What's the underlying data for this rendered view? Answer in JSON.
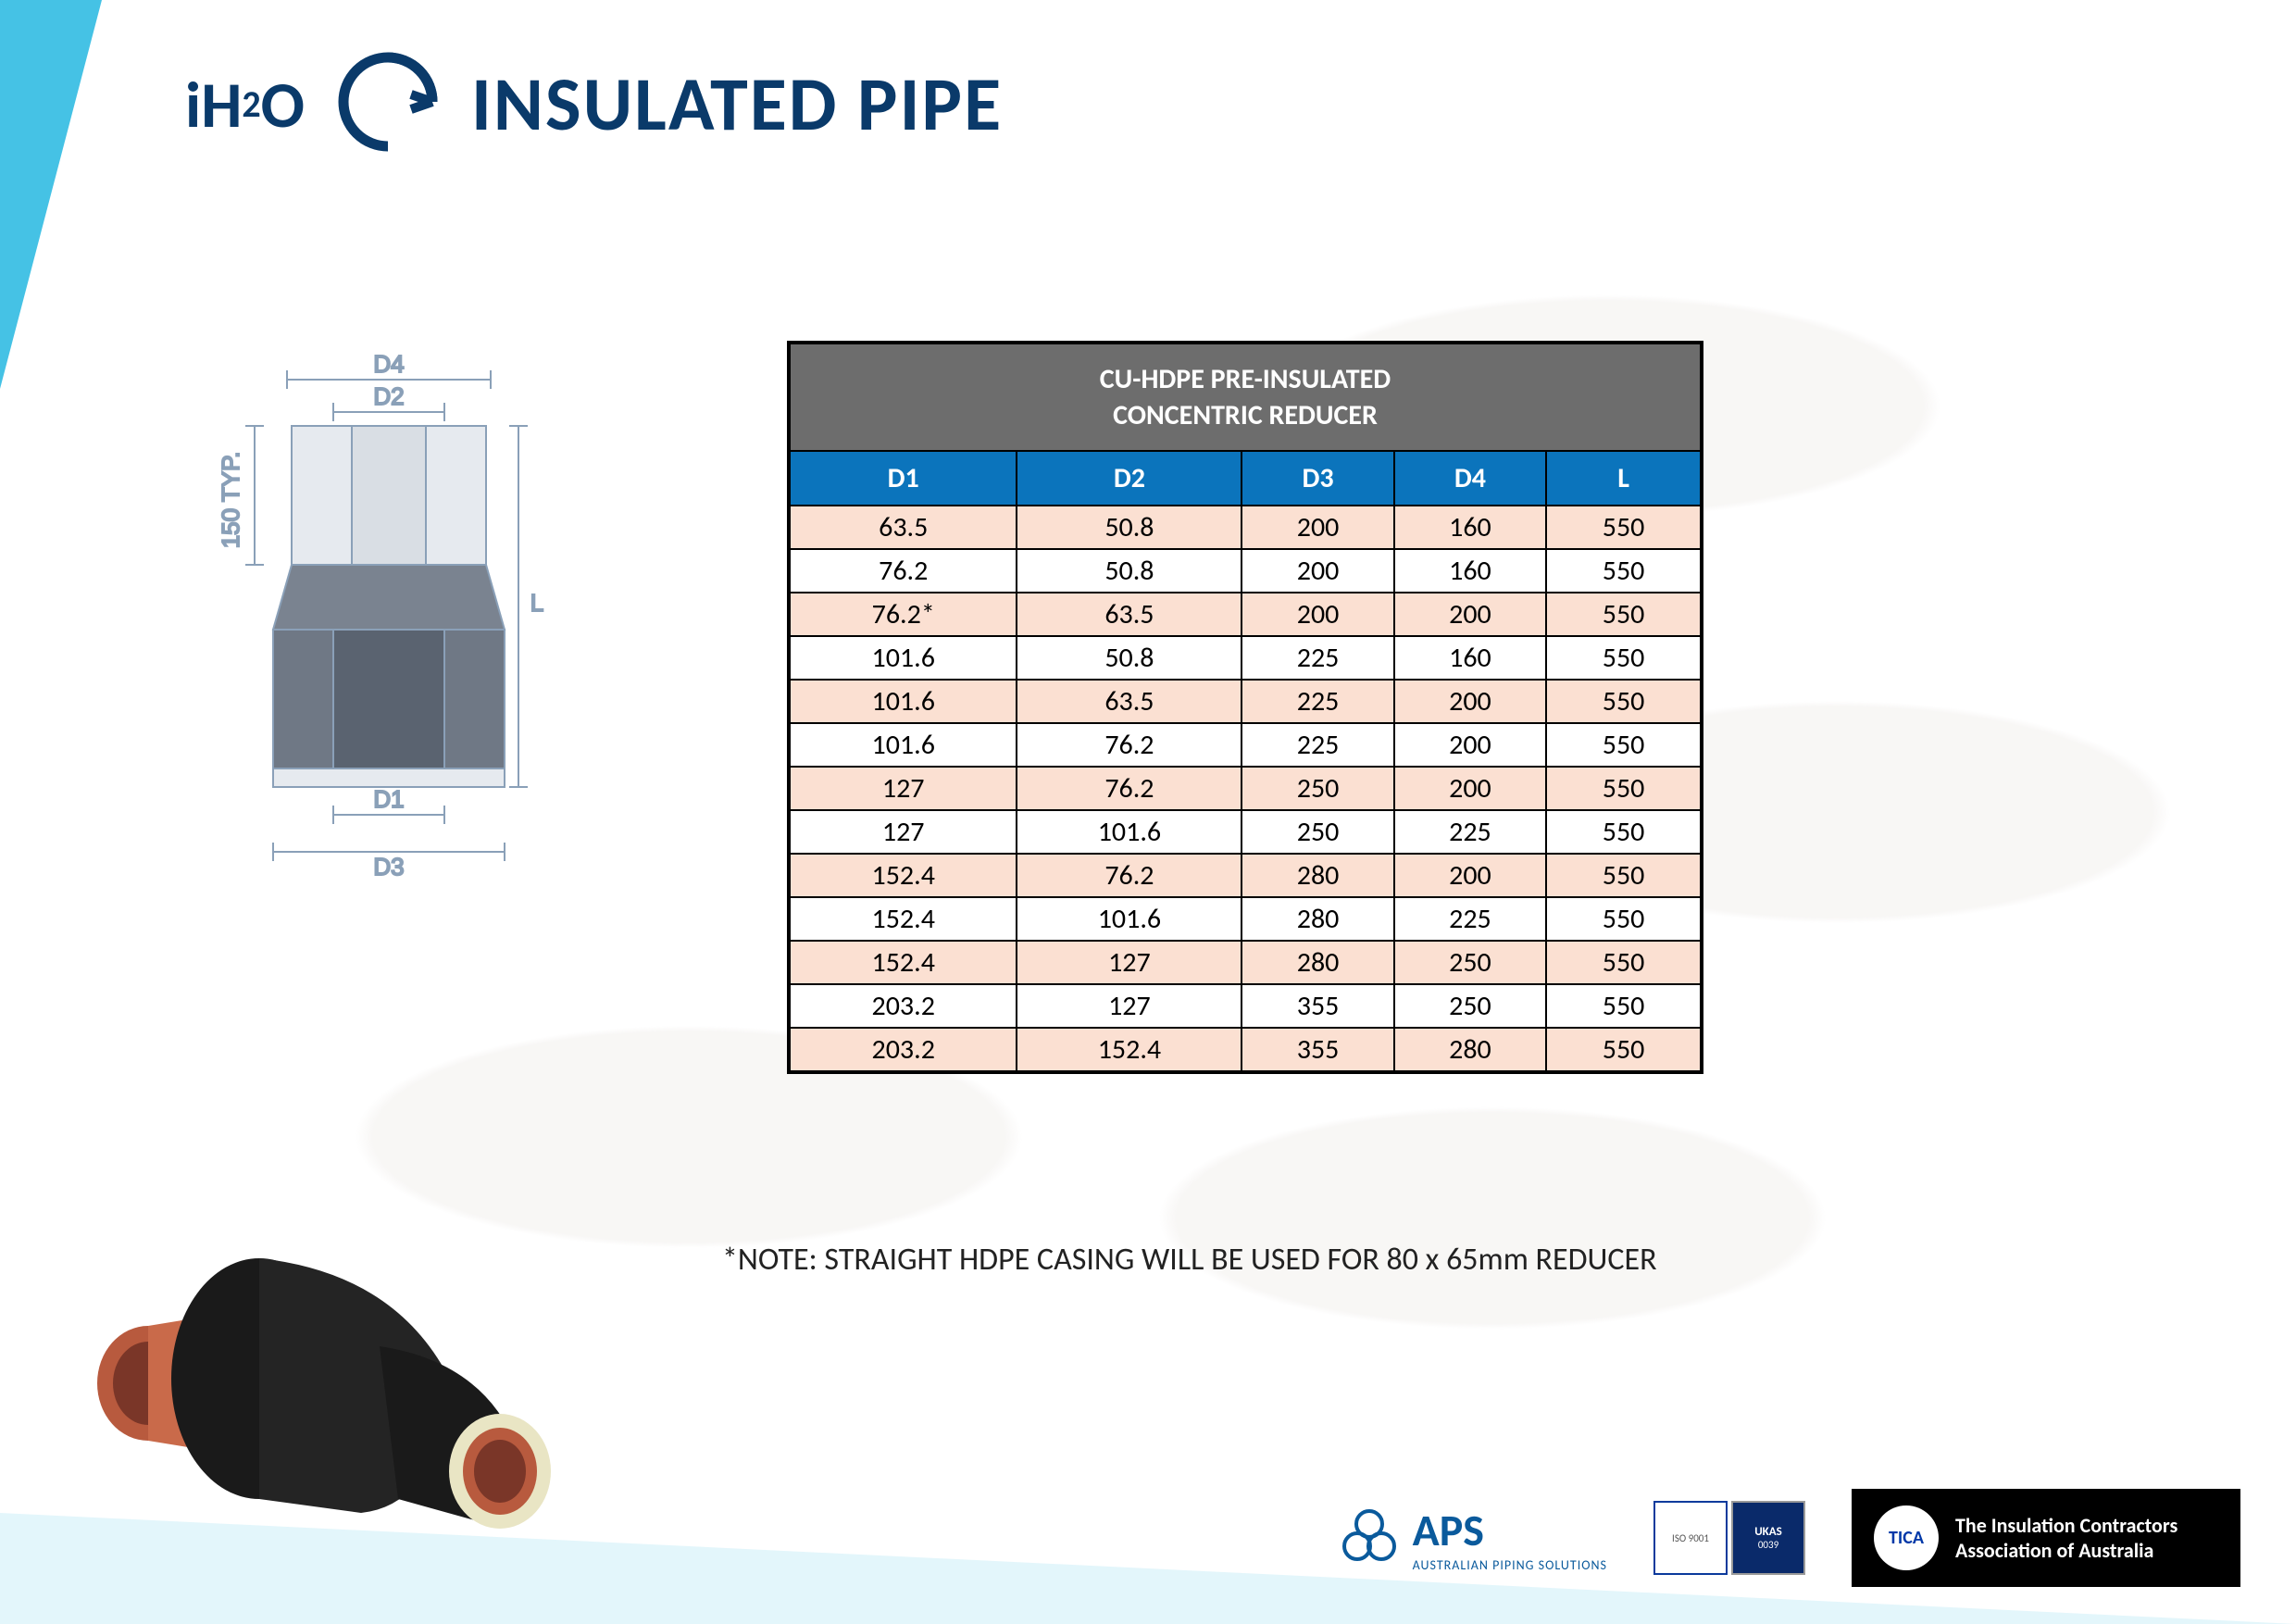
{
  "header": {
    "logo_prefix": "iH",
    "logo_super": "2",
    "logo_suffix": "O",
    "title": "INSULATED PIPE"
  },
  "diagram": {
    "labels": {
      "d1": "D1",
      "d2": "D2",
      "d3": "D3",
      "d4": "D4",
      "l": "L",
      "typ": "150 TYP."
    },
    "stroke": "#8aa0b8",
    "fill_top": "#d9dee4",
    "fill_body": "#6f7885"
  },
  "table": {
    "title_line1": "CU-HDPE PRE-INSULATED",
    "title_line2": "CONCENTRIC REDUCER",
    "title_bg": "#6d6d6d",
    "header_bg": "#0b74bc",
    "row_odd_bg": "#fbe0d2",
    "row_even_bg": "#ffffff",
    "border_color": "#000000",
    "columns": [
      "D1",
      "D2",
      "D3",
      "D4",
      "L"
    ],
    "rows": [
      [
        "63.5",
        "50.8",
        "200",
        "160",
        "550"
      ],
      [
        "76.2",
        "50.8",
        "200",
        "160",
        "550"
      ],
      [
        "76.2*",
        "63.5",
        "200",
        "200",
        "550"
      ],
      [
        "101.6",
        "50.8",
        "225",
        "160",
        "550"
      ],
      [
        "101.6",
        "63.5",
        "225",
        "200",
        "550"
      ],
      [
        "101.6",
        "76.2",
        "225",
        "200",
        "550"
      ],
      [
        "127",
        "76.2",
        "250",
        "200",
        "550"
      ],
      [
        "127",
        "101.6",
        "250",
        "225",
        "550"
      ],
      [
        "152.4",
        "76.2",
        "280",
        "200",
        "550"
      ],
      [
        "152.4",
        "101.6",
        "280",
        "225",
        "550"
      ],
      [
        "152.4",
        "127",
        "280",
        "250",
        "550"
      ],
      [
        "203.2",
        "127",
        "355",
        "250",
        "550"
      ],
      [
        "203.2",
        "152.4",
        "355",
        "280",
        "550"
      ]
    ]
  },
  "note": "*NOTE: STRAIGHT HDPE CASING WILL BE USED FOR 80 x 65mm REDUCER",
  "footer": {
    "aps": {
      "name": "APS",
      "sub": "AUSTRALIAN PIPING SOLUTIONS"
    },
    "cert": {
      "left": "ISO 9001",
      "right": "UKAS",
      "num": "0039"
    },
    "tica": {
      "badge": "TICA",
      "text": "The Insulation Contractors Association of Australia"
    }
  },
  "colors": {
    "brand_dark": "#0a3a6a",
    "brand_accent": "#45c2e5",
    "pipe_copper": "#b85a3e",
    "pipe_foam": "#e9e5c4",
    "pipe_shell": "#1a1a1a"
  }
}
